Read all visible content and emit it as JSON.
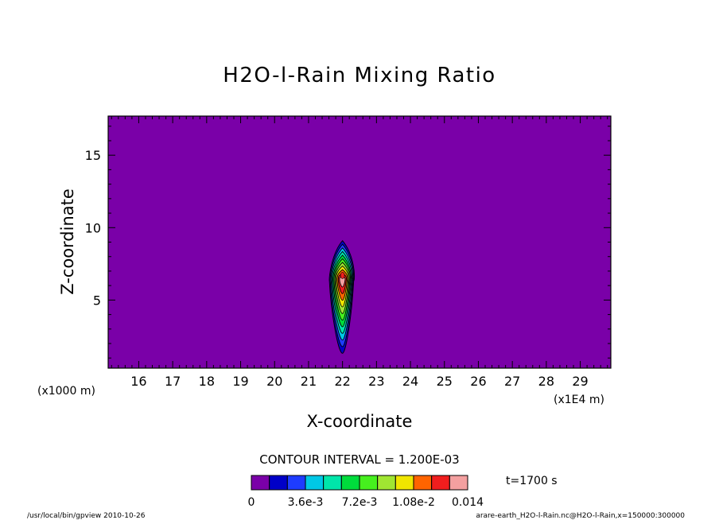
{
  "chart_data": {
    "type": "heatmap",
    "title": "H2O-l-Rain Mixing Ratio",
    "xlabel": "X-coordinate",
    "ylabel": "Z-coordinate",
    "x_unit_left": "(x1000 m)",
    "x_unit_right": "(x1E4 m)",
    "x_ticks": [
      16,
      17,
      18,
      19,
      20,
      21,
      22,
      23,
      24,
      25,
      26,
      27,
      28,
      29
    ],
    "y_ticks": [
      5,
      10,
      15
    ],
    "xlim": [
      15.1,
      29.9
    ],
    "ylim": [
      0.3,
      17.7
    ],
    "background_color": "#7a00a8",
    "contour_interval": "CONTOUR INTERVAL = 1.200E-03",
    "time_label": "t=1700 s",
    "colorbar": {
      "colors": [
        "#7a00a8",
        "#0000c8",
        "#1e3cff",
        "#00c8e6",
        "#00e6aa",
        "#00dc3c",
        "#46f01e",
        "#a0e632",
        "#f0e600",
        "#ff6400",
        "#f01e1e",
        "#f4a0a0"
      ],
      "tick_labels": [
        "0",
        "3.6e-3",
        "7.2e-3",
        "1.08e-2",
        "0.014"
      ]
    },
    "rain_cell": {
      "x_center": 22.0,
      "z_bottom": 1.0,
      "z_top": 9.1,
      "max_value": 0.014,
      "max_at": [
        22.0,
        6.7
      ]
    },
    "footer_left": "/usr/local/bin/gpview  2010-10-26",
    "footer_right": "arare-earth_H2O-l-Rain.nc@H2O-l-Rain,x=150000:300000"
  }
}
